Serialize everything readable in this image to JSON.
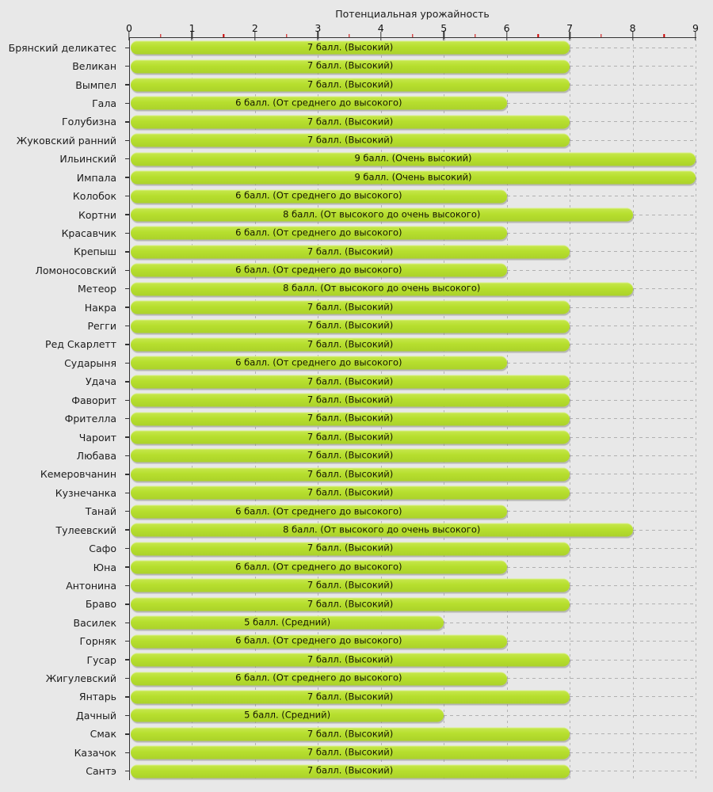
{
  "chart_data": {
    "type": "bar",
    "orientation": "horizontal",
    "title": "Потенциальная урожайность",
    "xlabel": "Потенциальная урожайность",
    "ylabel": "",
    "xlim": [
      0,
      9
    ],
    "x_ticks": [
      "0",
      "1",
      "2",
      "3",
      "4",
      "5",
      "6",
      "7",
      "8",
      "9"
    ],
    "minor_tick_step": 0.5,
    "grid": "dashed vertical gridlines at integers; dashed horizontal guide from bar end to right edge",
    "legend_position": "none",
    "colors": {
      "bar_fill": "#b7df2e",
      "background": "#e8e8e8",
      "grid": "#b0b0b0",
      "axis": "#333333",
      "minor_tick": "#cc0000",
      "bar_text": "#141400"
    },
    "value_meanings": {
      "5": "Средний",
      "6": "От среднего до высокого",
      "7": "Высокий",
      "8": "От высокого до очень высокого",
      "9": "Очень высокий"
    },
    "rows": [
      {
        "name": "Брянский деликатес",
        "value": 7,
        "label": "7 балл. (Высокий)"
      },
      {
        "name": "Великан",
        "value": 7,
        "label": "7 балл. (Высокий)"
      },
      {
        "name": "Вымпел",
        "value": 7,
        "label": "7 балл. (Высокий)"
      },
      {
        "name": "Гала",
        "value": 6,
        "label": "6 балл. (От среднего до высокого)"
      },
      {
        "name": "Голубизна",
        "value": 7,
        "label": "7 балл. (Высокий)"
      },
      {
        "name": "Жуковский ранний",
        "value": 7,
        "label": "7 балл. (Высокий)"
      },
      {
        "name": "Ильинский",
        "value": 9,
        "label": "9 балл. (Очень высокий)"
      },
      {
        "name": "Импала",
        "value": 9,
        "label": "9 балл. (Очень высокий)"
      },
      {
        "name": "Колобок",
        "value": 6,
        "label": "6 балл. (От среднего до высокого)"
      },
      {
        "name": "Кортни",
        "value": 8,
        "label": "8 балл. (От высокого до очень высокого)"
      },
      {
        "name": "Красавчик",
        "value": 6,
        "label": "6 балл. (От среднего до высокого)"
      },
      {
        "name": "Крепыш",
        "value": 7,
        "label": "7 балл. (Высокий)"
      },
      {
        "name": "Ломоносовский",
        "value": 6,
        "label": "6 балл. (От среднего до высокого)"
      },
      {
        "name": "Метеор",
        "value": 8,
        "label": "8 балл. (От высокого до очень высокого)"
      },
      {
        "name": "Накра",
        "value": 7,
        "label": "7 балл. (Высокий)"
      },
      {
        "name": "Регги",
        "value": 7,
        "label": "7 балл. (Высокий)"
      },
      {
        "name": "Ред Скарлетт",
        "value": 7,
        "label": "7 балл. (Высокий)"
      },
      {
        "name": "Сударыня",
        "value": 6,
        "label": "6 балл. (От среднего до высокого)"
      },
      {
        "name": "Удача",
        "value": 7,
        "label": "7 балл. (Высокий)"
      },
      {
        "name": "Фаворит",
        "value": 7,
        "label": "7 балл. (Высокий)"
      },
      {
        "name": "Фрителла",
        "value": 7,
        "label": "7 балл. (Высокий)"
      },
      {
        "name": "Чароит",
        "value": 7,
        "label": "7 балл. (Высокий)"
      },
      {
        "name": "Любава",
        "value": 7,
        "label": "7 балл. (Высокий)"
      },
      {
        "name": "Кемеровчанин",
        "value": 7,
        "label": "7 балл. (Высокий)"
      },
      {
        "name": "Кузнечанка",
        "value": 7,
        "label": "7 балл. (Высокий)"
      },
      {
        "name": "Танай",
        "value": 6,
        "label": "6 балл. (От среднего до высокого)"
      },
      {
        "name": "Тулеевский",
        "value": 8,
        "label": "8 балл. (От высокого до очень высокого)"
      },
      {
        "name": "Сафо",
        "value": 7,
        "label": "7 балл. (Высокий)"
      },
      {
        "name": "Юна",
        "value": 6,
        "label": "6 балл. (От среднего до высокого)"
      },
      {
        "name": "Антонина",
        "value": 7,
        "label": "7 балл. (Высокий)"
      },
      {
        "name": "Браво",
        "value": 7,
        "label": "7 балл. (Высокий)"
      },
      {
        "name": "Василек",
        "value": 5,
        "label": "5 балл. (Средний)"
      },
      {
        "name": "Горняк",
        "value": 6,
        "label": "6 балл. (От среднего до высокого)"
      },
      {
        "name": "Гусар",
        "value": 7,
        "label": "7 балл. (Высокий)"
      },
      {
        "name": "Жигулевский",
        "value": 6,
        "label": "6 балл. (От среднего до высокого)"
      },
      {
        "name": "Янтарь",
        "value": 7,
        "label": "7 балл. (Высокий)"
      },
      {
        "name": "Дачный",
        "value": 5,
        "label": "5 балл. (Средний)"
      },
      {
        "name": "Смак",
        "value": 7,
        "label": "7 балл. (Высокий)"
      },
      {
        "name": "Казачок",
        "value": 7,
        "label": "7 балл. (Высокий)"
      },
      {
        "name": "Сантэ",
        "value": 7,
        "label": "7 балл. (Высокий)"
      }
    ]
  }
}
